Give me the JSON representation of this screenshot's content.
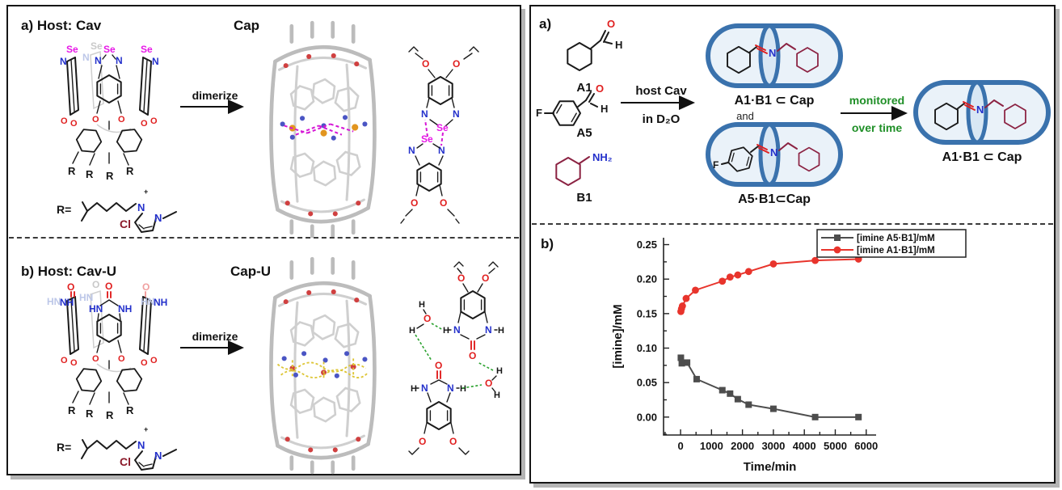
{
  "left": {
    "a": {
      "title": "a) Host: Cav",
      "product": "Cap",
      "arrow": "dimerize",
      "r_eq": "R="
    },
    "b": {
      "title": "b) Host: Cav-U",
      "product": "Cap-U",
      "arrow": "dimerize",
      "r_eq": "R="
    }
  },
  "right": {
    "a": {
      "label": "a)",
      "mol1": "A1",
      "mol2": "A5",
      "mol3": "B1",
      "arrow_top": "host Cav",
      "arrow_bottom": "in D₂O",
      "capsule1": "A1·B1 ⊂ Cap",
      "and": "and",
      "capsule2": "A5·B1⊂Cap",
      "monitored1": "monitored",
      "monitored2": "over time",
      "capsule3": "A1·B1 ⊂ Cap"
    },
    "b": {
      "label": "b)"
    }
  },
  "atoms": {
    "se": "Se",
    "n": "N",
    "o": "O",
    "cl": "Cl",
    "h": "H",
    "hn": "HN",
    "nh": "NH",
    "nh2": "NH₂",
    "f": "F",
    "r": "R",
    "plus": "+"
  },
  "colors": {
    "selenium": "#e718e7",
    "nitrogen": "#2330cb",
    "oxygen": "#e01f1f",
    "chloride": "#8b1a2a",
    "maroon": "#8b2242",
    "capsule_blue": "#3a72ad",
    "capsule_fill": "#eaf2f9",
    "green": "#1f8f27",
    "series_black": "#4d4d4d",
    "series_red": "#e8342c"
  },
  "chart_data": {
    "type": "line",
    "xlabel": "Time/min",
    "ylabel": "[imine]/mM",
    "xlim": [
      -550,
      6320
    ],
    "ylim": [
      -0.026,
      0.26
    ],
    "xticks": [
      0,
      1000,
      2000,
      3000,
      4000,
      5000,
      6000
    ],
    "xtick_labels": [
      "0",
      "1000",
      "2000",
      "3000",
      "4000",
      "5000",
      "6000"
    ],
    "yticks": [
      0.0,
      0.05,
      0.1,
      0.15,
      0.2,
      0.25
    ],
    "ytick_labels": [
      "0.00",
      "0.05",
      "0.10",
      "0.15",
      "0.20",
      "0.25"
    ],
    "minor_x_step": 500,
    "minor_y_step": 0.025,
    "grid": false,
    "legend_position": "top-right",
    "series": [
      {
        "name": "[imine A5·B1]/mM",
        "color": "#4d4d4d",
        "marker": "square",
        "x": [
          10,
          40,
          210,
          520,
          1350,
          1600,
          1850,
          2200,
          3000,
          4350,
          5750
        ],
        "y": [
          0.086,
          0.078,
          0.079,
          0.055,
          0.039,
          0.034,
          0.026,
          0.018,
          0.012,
          0.0,
          0.0
        ]
      },
      {
        "name": "[imine A1·B1]/mM",
        "color": "#e8342c",
        "marker": "circle",
        "x": [
          10,
          30,
          60,
          180,
          480,
          1350,
          1600,
          1850,
          2200,
          3000,
          4350,
          5750
        ],
        "y": [
          0.153,
          0.157,
          0.161,
          0.172,
          0.184,
          0.197,
          0.203,
          0.206,
          0.211,
          0.222,
          0.227,
          0.229
        ]
      }
    ]
  }
}
